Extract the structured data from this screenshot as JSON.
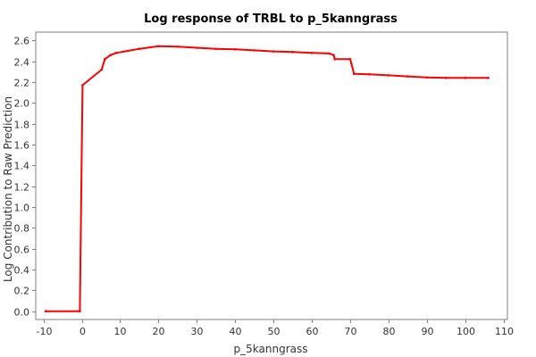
{
  "chart_data": {
    "type": "line",
    "title": "Log response of TRBL to p_5kanngrass",
    "xlabel": "p_5kanngrass",
    "ylabel": "Log Contribution to Raw Prediction",
    "xlim": [
      -12,
      111
    ],
    "ylim": [
      -0.08,
      2.68
    ],
    "xticks": [
      -10,
      0,
      10,
      20,
      30,
      40,
      50,
      60,
      70,
      80,
      90,
      100,
      110
    ],
    "yticks": [
      0.0,
      0.2,
      0.4,
      0.6,
      0.8,
      1.0,
      1.2,
      1.4,
      1.6,
      1.8,
      2.0,
      2.2,
      2.4,
      2.6
    ],
    "ytick_labels": [
      "0.0",
      "0.2",
      "0.4",
      "0.6",
      "0.8",
      "1.0",
      "1.2",
      "1.4",
      "1.6",
      "1.8",
      "2.0",
      "2.2",
      "2.4",
      "2.6"
    ],
    "grid": true,
    "colors": {
      "line": "#ff0000",
      "grid": "#c0c0c0",
      "axis": "#808080"
    },
    "series": [
      {
        "x": [
          -9.4,
          -0.5,
          0.2,
          5.2,
          6.0,
          7.5,
          9.0,
          12.0,
          15.0,
          20.0,
          25.0,
          30.0,
          35.0,
          40.0,
          45.0,
          50.0,
          55.0,
          60.0,
          64.5,
          65.7,
          66.0,
          70.0,
          70.3,
          71.0,
          75.0,
          80.0,
          85.0,
          90.0,
          95.0,
          100.0,
          106.0
        ],
        "y": [
          0.0,
          0.0,
          2.17,
          2.32,
          2.42,
          2.46,
          2.48,
          2.5,
          2.52,
          2.545,
          2.54,
          2.53,
          2.52,
          2.515,
          2.505,
          2.495,
          2.49,
          2.48,
          2.475,
          2.46,
          2.42,
          2.42,
          2.38,
          2.28,
          2.275,
          2.265,
          2.255,
          2.245,
          2.24,
          2.24,
          2.24
        ]
      }
    ]
  }
}
